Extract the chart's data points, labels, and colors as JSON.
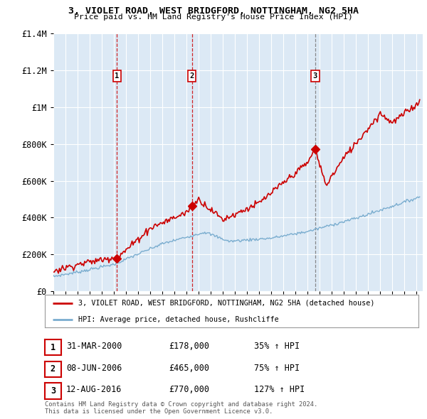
{
  "title": "3, VIOLET ROAD, WEST BRIDGFORD, NOTTINGHAM, NG2 5HA",
  "subtitle": "Price paid vs. HM Land Registry's House Price Index (HPI)",
  "ylim": [
    0,
    1400000
  ],
  "xlim_start": 1995.0,
  "xlim_end": 2025.5,
  "plot_bg_color": "#dce9f5",
  "sale_dates": [
    2000.247,
    2006.44,
    2016.62
  ],
  "sale_prices": [
    178000,
    465000,
    770000
  ],
  "sale_labels": [
    "1",
    "2",
    "3"
  ],
  "sale_vline_styles": [
    "dashed_red",
    "dashed_red",
    "dashed_gray"
  ],
  "legend_property": "3, VIOLET ROAD, WEST BRIDGFORD, NOTTINGHAM, NG2 5HA (detached house)",
  "legend_hpi": "HPI: Average price, detached house, Rushcliffe",
  "table_rows": [
    {
      "num": "1",
      "date": "31-MAR-2000",
      "price": "£178,000",
      "change": "35% ↑ HPI"
    },
    {
      "num": "2",
      "date": "08-JUN-2006",
      "price": "£465,000",
      "change": "75% ↑ HPI"
    },
    {
      "num": "3",
      "date": "12-AUG-2016",
      "price": "£770,000",
      "change": "127% ↑ HPI"
    }
  ],
  "footer": "Contains HM Land Registry data © Crown copyright and database right 2024.\nThis data is licensed under the Open Government Licence v3.0.",
  "red_line_color": "#cc0000",
  "blue_line_color": "#7aadcf",
  "yticks": [
    0,
    200000,
    400000,
    600000,
    800000,
    1000000,
    1200000,
    1400000
  ],
  "ytick_labels": [
    "£0",
    "£200K",
    "£400K",
    "£600K",
    "£800K",
    "£1M",
    "£1.2M",
    "£1.4M"
  ]
}
